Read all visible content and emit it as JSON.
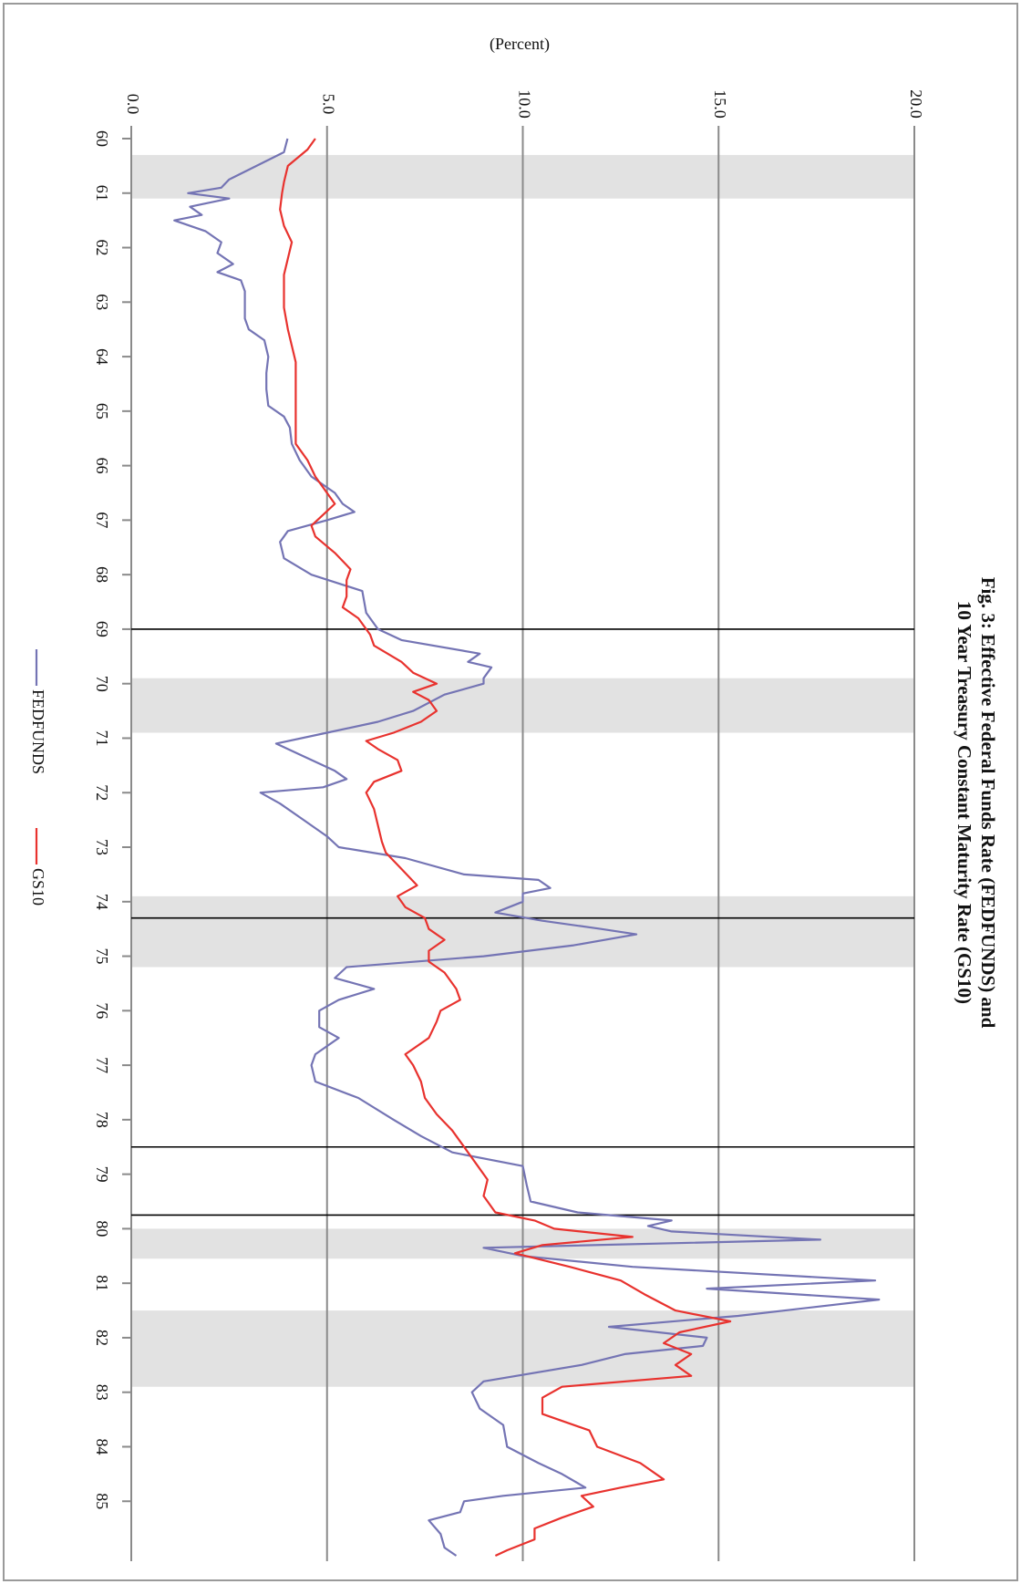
{
  "chart_data": {
    "type": "line",
    "title": [
      "Fig. 3: Effective Federal Funds Rate (FEDFUNDS) and",
      "10 Year Treasury Constant Maturity Rate (GS10)"
    ],
    "y_label": "(Percent)",
    "xlim": [
      60,
      86.1
    ],
    "xticks": [
      60,
      61,
      62,
      63,
      64,
      65,
      66,
      67,
      68,
      69,
      70,
      71,
      72,
      73,
      74,
      75,
      76,
      77,
      78,
      79,
      80,
      81,
      82,
      83,
      84,
      85
    ],
    "ylim": [
      0,
      20
    ],
    "yticks": [
      {
        "value": 0,
        "label": "0.0"
      },
      {
        "value": 5,
        "label": "5.0"
      },
      {
        "value": 10,
        "label": "10.0"
      },
      {
        "value": 15,
        "label": "15.0"
      },
      {
        "value": 20,
        "label": "20.0"
      }
    ],
    "grid": true,
    "shaded_periods": [
      [
        60.3,
        61.1
      ],
      [
        69.9,
        70.9
      ],
      [
        73.9,
        75.2
      ],
      [
        80.0,
        80.55
      ],
      [
        81.5,
        82.9
      ]
    ],
    "vertical_lines": [
      69.0,
      74.3,
      78.5,
      79.75
    ],
    "series": [
      {
        "name": "FEDFUNDS",
        "color": "#7474b4",
        "x": [
          60.0,
          60.25,
          60.5,
          60.75,
          60.9,
          61.0,
          61.1,
          61.25,
          61.4,
          61.5,
          61.7,
          61.9,
          62.1,
          62.3,
          62.45,
          62.6,
          62.8,
          63.0,
          63.3,
          63.5,
          63.7,
          64.0,
          64.3,
          64.6,
          64.9,
          65.1,
          65.3,
          65.6,
          65.9,
          66.2,
          66.5,
          66.7,
          66.85,
          67.0,
          67.2,
          67.4,
          67.7,
          68.0,
          68.3,
          68.7,
          69.0,
          69.2,
          69.45,
          69.6,
          69.7,
          69.9,
          70.0,
          70.2,
          70.5,
          70.7,
          70.9,
          71.1,
          71.3,
          71.6,
          71.75,
          71.9,
          72.0,
          72.2,
          72.5,
          72.8,
          73.0,
          73.2,
          73.5,
          73.6,
          73.75,
          73.85,
          74.0,
          74.2,
          74.35,
          74.5,
          74.6,
          74.8,
          75.0,
          75.2,
          75.4,
          75.6,
          75.8,
          76.0,
          76.3,
          76.5,
          76.8,
          77.0,
          77.3,
          77.6,
          78.0,
          78.3,
          78.6,
          78.85,
          79.2,
          79.5,
          79.7,
          79.85,
          79.95,
          80.05,
          80.2,
          80.35,
          80.5,
          80.7,
          80.95,
          81.1,
          81.3,
          81.6,
          81.8,
          82.0,
          82.15,
          82.3,
          82.5,
          82.8,
          83.0,
          83.3,
          83.6,
          84.0,
          84.3,
          84.5,
          84.75,
          84.9,
          85.0,
          85.2,
          85.35,
          85.6,
          85.85,
          86.0
        ],
        "values": [
          3.99,
          3.9,
          3.2,
          2.5,
          2.3,
          1.45,
          2.5,
          1.5,
          1.8,
          1.1,
          1.9,
          2.3,
          2.2,
          2.6,
          2.2,
          2.8,
          2.9,
          2.9,
          2.9,
          3.0,
          3.4,
          3.5,
          3.45,
          3.45,
          3.5,
          3.9,
          4.05,
          4.1,
          4.3,
          4.6,
          5.2,
          5.4,
          5.7,
          5.0,
          4.0,
          3.8,
          3.9,
          4.6,
          5.9,
          6.0,
          6.3,
          6.9,
          8.9,
          8.6,
          9.2,
          9.0,
          9.0,
          8.0,
          7.2,
          6.3,
          5.0,
          3.7,
          4.3,
          5.2,
          5.5,
          4.9,
          3.3,
          3.8,
          4.4,
          5.0,
          5.3,
          7.0,
          8.5,
          10.4,
          10.7,
          10.0,
          10.0,
          9.3,
          10.5,
          12.0,
          12.9,
          11.3,
          9.0,
          5.5,
          5.2,
          6.2,
          5.3,
          4.8,
          4.8,
          5.3,
          4.7,
          4.6,
          4.7,
          5.8,
          6.7,
          7.4,
          8.2,
          10.0,
          10.1,
          10.2,
          11.4,
          13.8,
          13.2,
          13.8,
          17.6,
          9.0,
          10.0,
          12.8,
          19.0,
          14.7,
          19.1,
          15.5,
          12.2,
          14.7,
          14.6,
          12.6,
          11.5,
          9.0,
          8.7,
          8.9,
          9.5,
          9.6,
          10.4,
          11.0,
          11.6,
          9.5,
          8.5,
          8.4,
          7.6,
          7.9,
          8.0,
          8.3
        ]
      },
      {
        "name": "GS10",
        "color": "#e8322e",
        "x": [
          60.0,
          60.2,
          60.5,
          60.8,
          61.0,
          61.3,
          61.6,
          61.9,
          62.2,
          62.5,
          62.8,
          63.1,
          63.5,
          63.8,
          64.1,
          64.5,
          64.9,
          65.3,
          65.6,
          65.9,
          66.2,
          66.5,
          66.7,
          66.9,
          67.1,
          67.3,
          67.6,
          67.9,
          68.1,
          68.4,
          68.6,
          68.8,
          69.1,
          69.3,
          69.6,
          69.8,
          70.0,
          70.15,
          70.3,
          70.5,
          70.7,
          70.9,
          71.05,
          71.2,
          71.4,
          71.6,
          71.8,
          72.0,
          72.3,
          72.6,
          72.9,
          73.1,
          73.4,
          73.7,
          73.9,
          74.1,
          74.3,
          74.5,
          74.7,
          74.9,
          75.1,
          75.3,
          75.6,
          75.8,
          76.0,
          76.2,
          76.5,
          76.8,
          77.0,
          77.3,
          77.6,
          77.9,
          78.2,
          78.5,
          78.8,
          79.1,
          79.4,
          79.7,
          79.85,
          80.0,
          80.15,
          80.3,
          80.45,
          80.7,
          80.95,
          81.2,
          81.5,
          81.7,
          81.9,
          82.1,
          82.3,
          82.5,
          82.7,
          82.9,
          83.1,
          83.4,
          83.7,
          84.0,
          84.3,
          84.6,
          84.75,
          84.9,
          85.1,
          85.3,
          85.5,
          85.7,
          85.9,
          86.0
        ],
        "values": [
          4.7,
          4.5,
          4.0,
          3.9,
          3.85,
          3.8,
          3.9,
          4.1,
          4.0,
          3.9,
          3.9,
          3.9,
          4.0,
          4.1,
          4.2,
          4.2,
          4.2,
          4.2,
          4.2,
          4.5,
          4.7,
          5.0,
          5.2,
          4.9,
          4.6,
          4.7,
          5.2,
          5.6,
          5.5,
          5.5,
          5.4,
          5.8,
          6.1,
          6.2,
          6.9,
          7.2,
          7.8,
          7.2,
          7.6,
          7.8,
          7.4,
          6.7,
          6.0,
          6.3,
          6.8,
          6.9,
          6.2,
          6.0,
          6.2,
          6.3,
          6.4,
          6.5,
          6.9,
          7.3,
          6.8,
          7.0,
          7.5,
          7.6,
          8.0,
          7.6,
          7.6,
          8.0,
          8.3,
          8.4,
          7.9,
          7.8,
          7.6,
          7.0,
          7.2,
          7.4,
          7.5,
          7.8,
          8.2,
          8.5,
          8.8,
          9.1,
          9.0,
          9.3,
          10.3,
          10.8,
          12.8,
          10.5,
          9.8,
          11.2,
          12.5,
          13.1,
          13.9,
          15.3,
          14.0,
          13.6,
          14.3,
          13.9,
          14.3,
          11.0,
          10.5,
          10.5,
          11.7,
          11.9,
          13.0,
          13.6,
          12.5,
          11.5,
          11.8,
          11.0,
          10.3,
          10.3,
          9.6,
          9.3
        ]
      }
    ]
  }
}
